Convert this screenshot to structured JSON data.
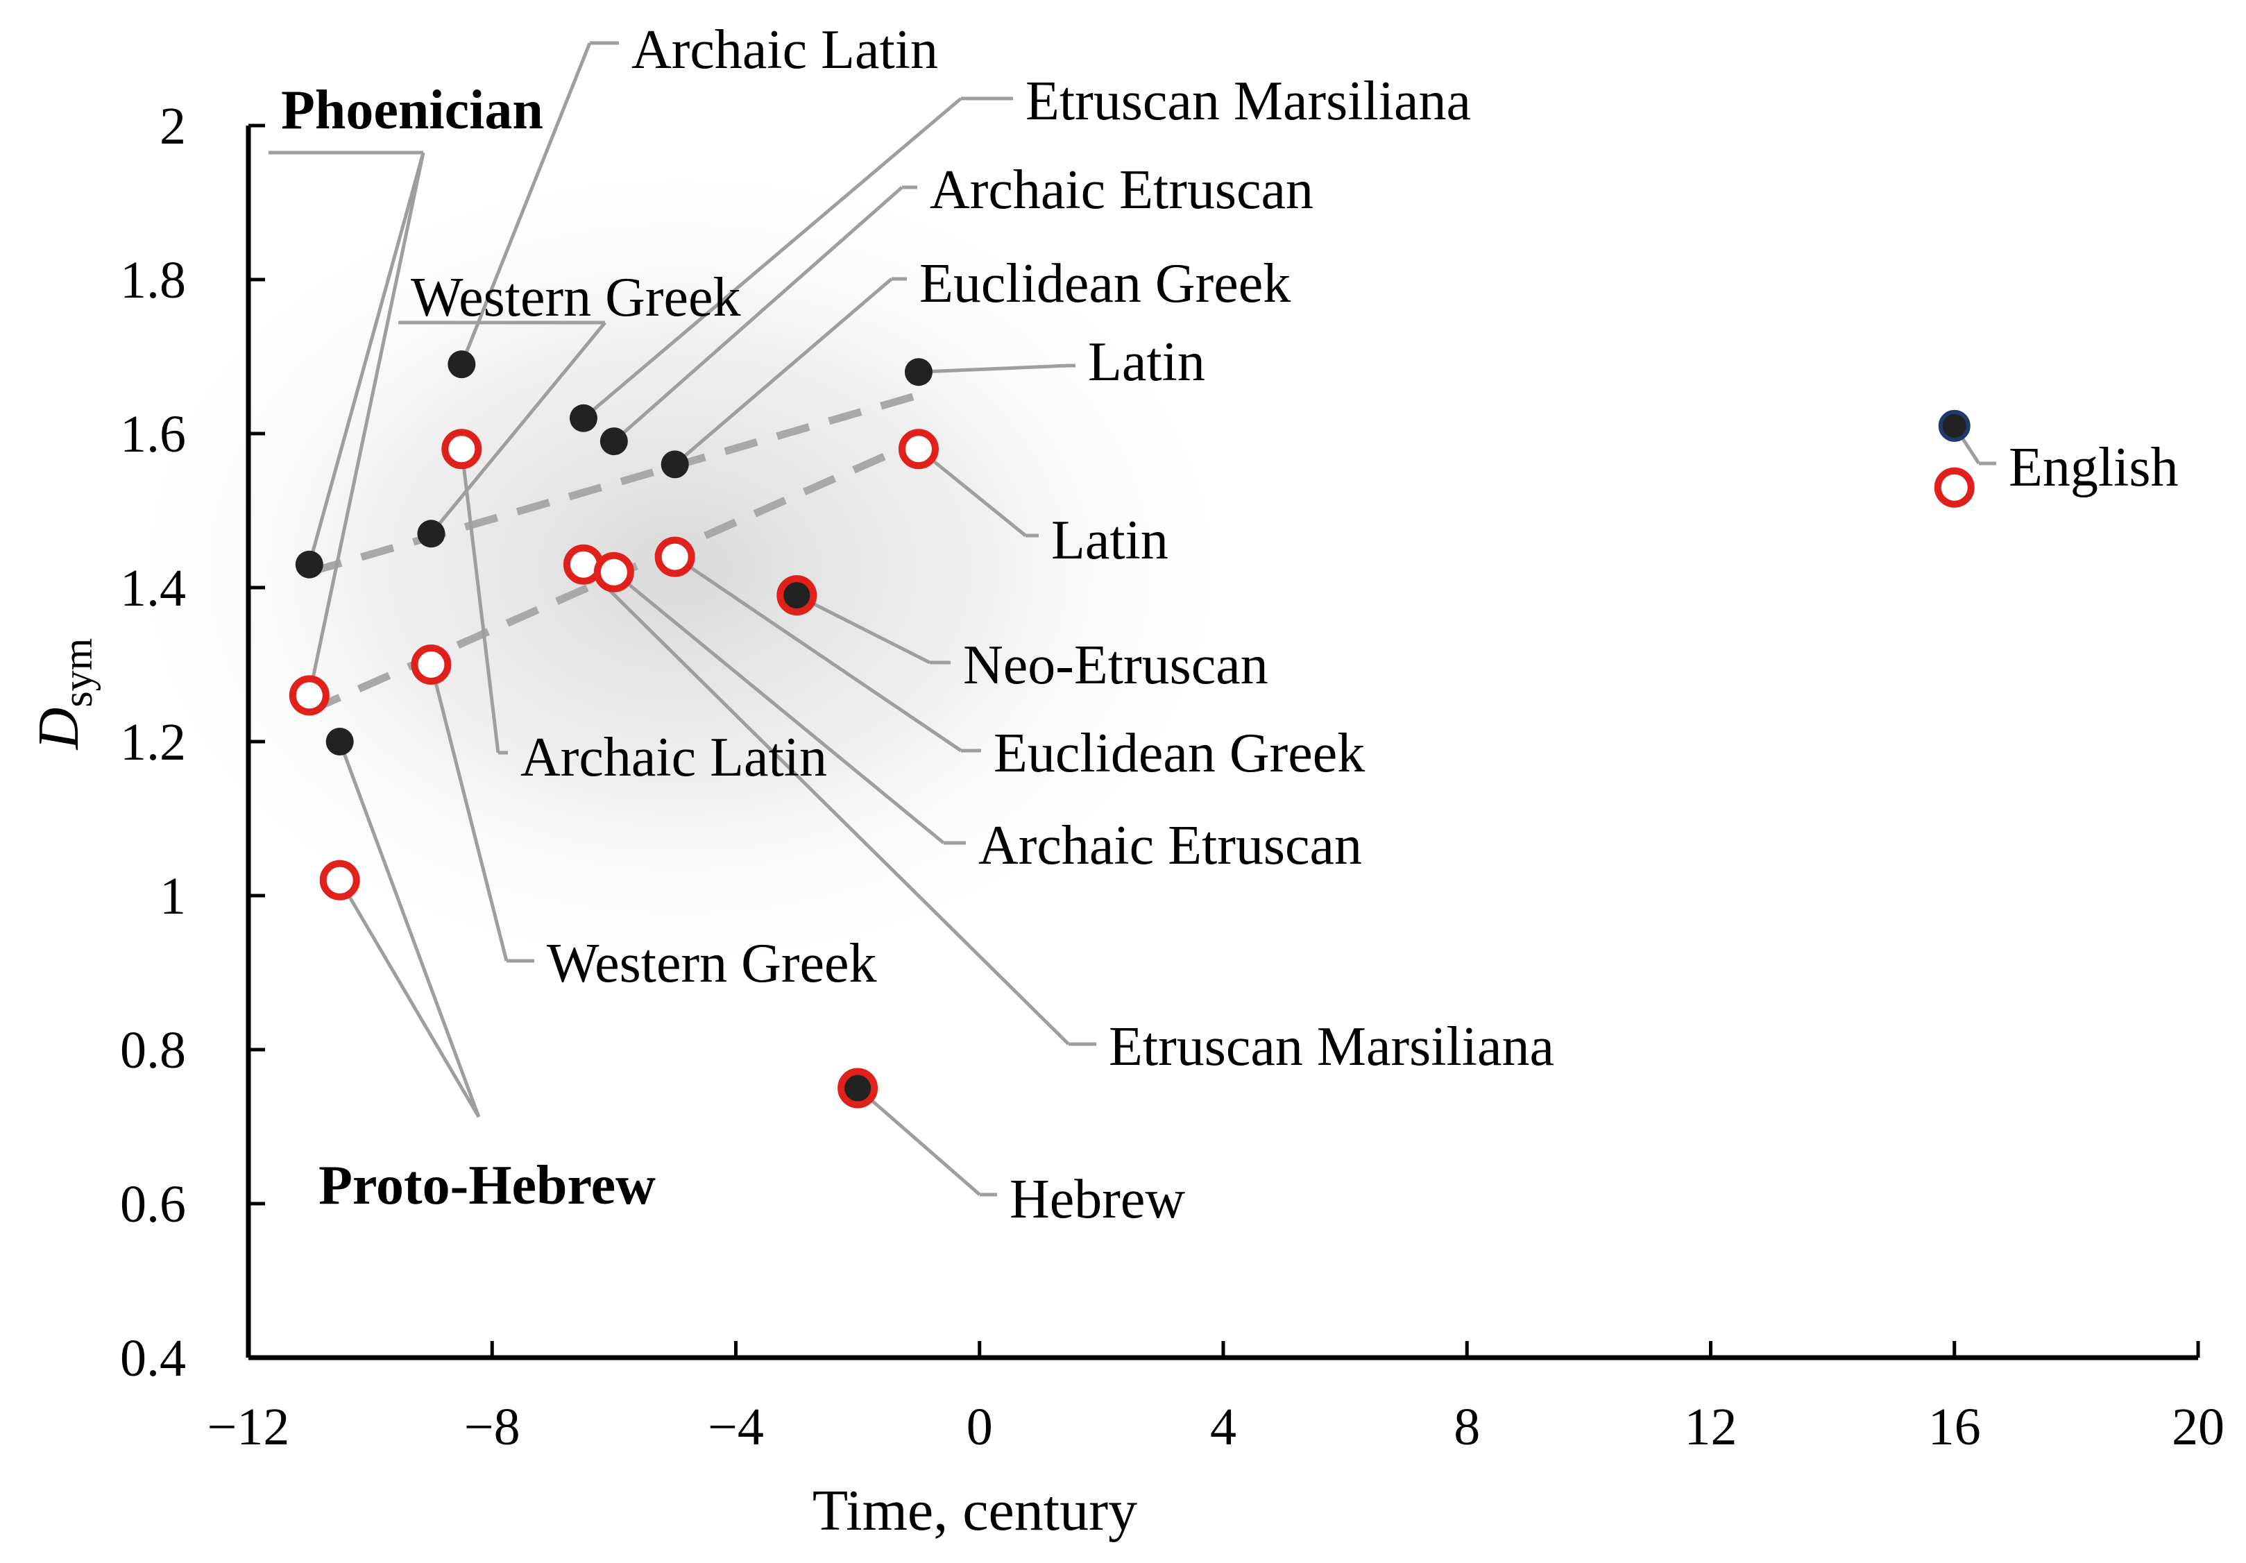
{
  "chart_data": {
    "type": "scatter",
    "xlabel": "Time, century",
    "ylabel": "D",
    "ylabel_sub": "sym",
    "xlim": [
      -12,
      20
    ],
    "ylim": [
      0.4,
      2.0
    ],
    "x_ticks": [
      -12,
      -8,
      -4,
      0,
      4,
      8,
      12,
      16,
      20
    ],
    "x_tick_labels": [
      "−12",
      "−8",
      "−4",
      "0",
      "4",
      "8",
      "12",
      "16",
      "20"
    ],
    "y_ticks": [
      0.4,
      0.6,
      0.8,
      1.0,
      1.2,
      1.4,
      1.6,
      1.8,
      2.0
    ],
    "y_tick_labels": [
      "0.4",
      "0.6",
      "0.8",
      "1",
      "1.2",
      "1.4",
      "1.6",
      "1.8",
      "2"
    ],
    "colors": {
      "filled": "#222222",
      "open": "#e0201b",
      "leader": "#9e9e9e",
      "trend": "#a8a8a8",
      "english": "#1f3a6b"
    },
    "series": [
      {
        "marker": "filled",
        "points": [
          {
            "x": -11,
            "y": 1.43
          },
          {
            "x": -10.5,
            "y": 1.2
          },
          {
            "x": -9,
            "y": 1.47
          },
          {
            "x": -8.5,
            "y": 1.69
          },
          {
            "x": -6.5,
            "y": 1.62
          },
          {
            "x": -6,
            "y": 1.59
          },
          {
            "x": -5,
            "y": 1.56
          },
          {
            "x": -3,
            "y": 1.39
          },
          {
            "x": -2,
            "y": 0.75
          },
          {
            "x": -1,
            "y": 1.68
          },
          {
            "x": 16,
            "y": 1.61
          }
        ]
      },
      {
        "marker": "open",
        "points": [
          {
            "x": -11,
            "y": 1.26
          },
          {
            "x": -10.5,
            "y": 1.02
          },
          {
            "x": -9,
            "y": 1.3
          },
          {
            "x": -8.5,
            "y": 1.58
          },
          {
            "x": -6.5,
            "y": 1.43
          },
          {
            "x": -6,
            "y": 1.42
          },
          {
            "x": -5,
            "y": 1.44
          },
          {
            "x": -3,
            "y": 1.39
          },
          {
            "x": -2,
            "y": 0.75
          },
          {
            "x": -1,
            "y": 1.58
          },
          {
            "x": 16,
            "y": 1.53
          }
        ]
      }
    ],
    "trend_lines": [
      {
        "x": [
          -11,
          -1
        ],
        "y": [
          1.42,
          1.65
        ]
      },
      {
        "x": [
          -11,
          -1
        ],
        "y": [
          1.24,
          1.59
        ]
      }
    ],
    "annotations": [
      {
        "id": "ann-archaic-latin-top",
        "text": "Archaic Latin",
        "bold": false,
        "targets": [
          {
            "x": -8.5,
            "y": 1.69
          }
        ]
      },
      {
        "id": "ann-phoenician",
        "text": "Phoenician",
        "bold": true,
        "targets": [
          {
            "x": -11,
            "y": 1.43
          },
          {
            "x": -11,
            "y": 1.26
          }
        ]
      },
      {
        "id": "ann-etruscan-marsiliana-top",
        "text": "Etruscan Marsiliana",
        "bold": false,
        "targets": [
          {
            "x": -6.5,
            "y": 1.62
          }
        ]
      },
      {
        "id": "ann-archaic-etruscan-top",
        "text": "Archaic Etruscan",
        "bold": false,
        "targets": [
          {
            "x": -6,
            "y": 1.59
          }
        ]
      },
      {
        "id": "ann-euclidean-greek-top",
        "text": "Euclidean Greek",
        "bold": false,
        "targets": [
          {
            "x": -5,
            "y": 1.56
          }
        ]
      },
      {
        "id": "ann-western-greek-top",
        "text": "Western Greek",
        "bold": false,
        "targets": [
          {
            "x": -9,
            "y": 1.47
          }
        ]
      },
      {
        "id": "ann-latin-top",
        "text": "Latin",
        "bold": false,
        "targets": [
          {
            "x": -1,
            "y": 1.68
          }
        ]
      },
      {
        "id": "ann-english",
        "text": "English",
        "bold": false,
        "targets": [
          {
            "x": 16,
            "y": 1.61
          }
        ]
      },
      {
        "id": "ann-latin-bottom",
        "text": "Latin",
        "bold": false,
        "targets": [
          {
            "x": -1,
            "y": 1.58
          }
        ]
      },
      {
        "id": "ann-neo-etruscan",
        "text": "Neo-Etruscan",
        "bold": false,
        "targets": [
          {
            "x": -3,
            "y": 1.39
          }
        ]
      },
      {
        "id": "ann-euclidean-greek-bottom",
        "text": "Euclidean Greek",
        "bold": false,
        "targets": [
          {
            "x": -5,
            "y": 1.44
          }
        ]
      },
      {
        "id": "ann-archaic-latin-bottom",
        "text": "Archaic Latin",
        "bold": false,
        "targets": [
          {
            "x": -8.5,
            "y": 1.58
          }
        ]
      },
      {
        "id": "ann-archaic-etruscan-bottom",
        "text": "Archaic Etruscan",
        "bold": false,
        "targets": [
          {
            "x": -6,
            "y": 1.42
          }
        ]
      },
      {
        "id": "ann-western-greek-bottom",
        "text": "Western Greek",
        "bold": false,
        "targets": [
          {
            "x": -9,
            "y": 1.3
          }
        ]
      },
      {
        "id": "ann-etruscan-marsiliana-bottom",
        "text": "Etruscan Marsiliana",
        "bold": false,
        "targets": [
          {
            "x": -6.5,
            "y": 1.43
          }
        ]
      },
      {
        "id": "ann-hebrew",
        "text": "Hebrew",
        "bold": false,
        "targets": [
          {
            "x": -2,
            "y": 0.75
          }
        ]
      },
      {
        "id": "ann-proto-hebrew",
        "text": "Proto-Hebrew",
        "bold": true,
        "targets": [
          {
            "x": -10.5,
            "y": 1.2
          },
          {
            "x": -10.5,
            "y": 1.02
          }
        ]
      }
    ]
  }
}
